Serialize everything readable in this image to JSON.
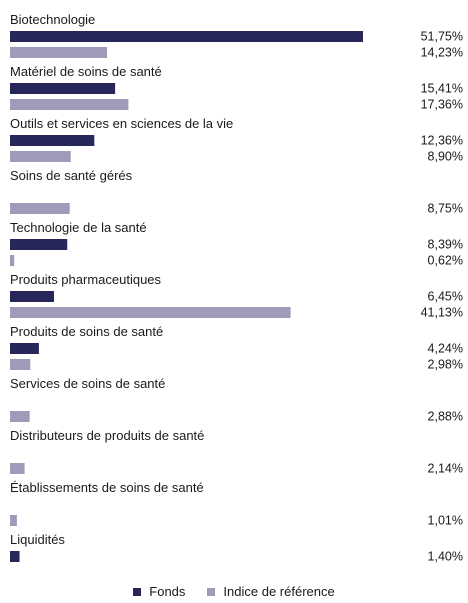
{
  "chart_data": {
    "type": "bar",
    "orientation": "horizontal",
    "categories": [
      "Biotechnologie",
      "Matériel de soins de santé",
      "Outils et services en sciences de la vie",
      "Soins de santé gérés",
      "Technologie de la santé",
      "Produits pharmaceutiques",
      "Produits de soins de santé",
      "Services de soins de santé",
      "Distributeurs de produits de santé",
      "Établissements de soins de santé",
      "Liquidités"
    ],
    "series": [
      {
        "name": "Fonds",
        "color": "#27275a",
        "values": [
          51.75,
          15.41,
          12.36,
          null,
          8.39,
          6.45,
          4.24,
          null,
          null,
          null,
          1.4
        ],
        "labels": [
          "51,75%",
          "15,41%",
          "12,36%",
          "",
          "8,39%",
          "6,45%",
          "4,24%",
          "",
          "",
          "",
          "1,40%"
        ]
      },
      {
        "name": "Indice de référence",
        "color": "#9d9bb7",
        "values": [
          14.23,
          17.36,
          8.9,
          8.75,
          0.62,
          41.13,
          2.98,
          2.88,
          2.14,
          1.01,
          null
        ],
        "labels": [
          "14,23%",
          "17,36%",
          "8,90%",
          "8,75%",
          "0,62%",
          "41,13%",
          "2,98%",
          "2,88%",
          "2,14%",
          "1,01%",
          ""
        ]
      }
    ],
    "xlim": [
      0,
      51.75
    ],
    "grid": false,
    "legend_position": "bottom-center"
  }
}
